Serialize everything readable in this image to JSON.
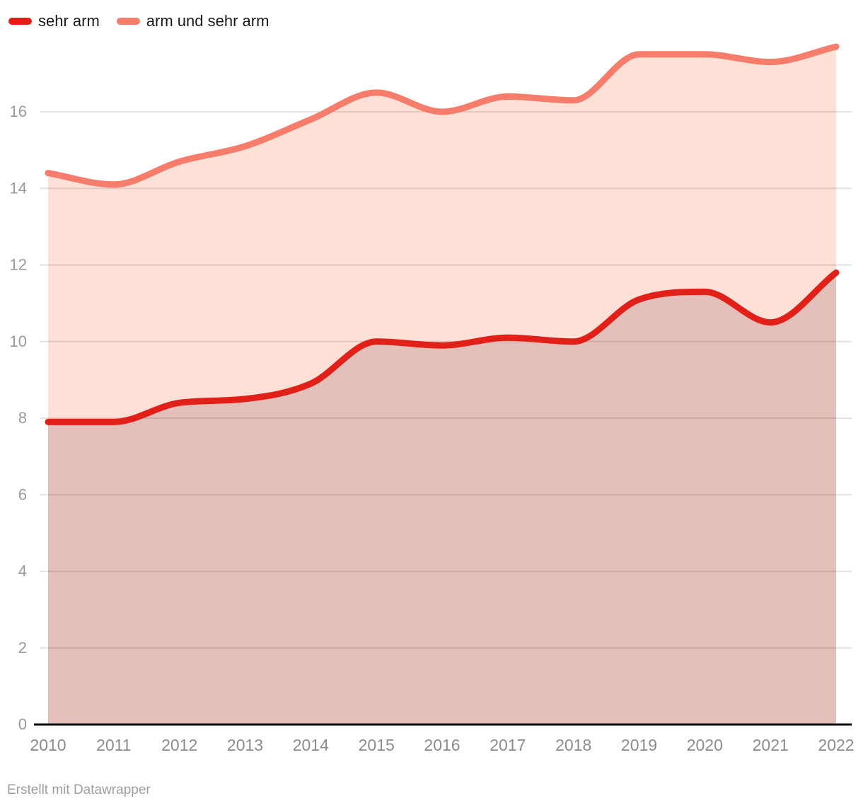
{
  "legend": {
    "items": [
      {
        "label": "sehr arm",
        "color": "#e02019"
      },
      {
        "label": "arm und sehr arm",
        "color": "#f67c6c"
      }
    ]
  },
  "footer": {
    "text": "Erstellt mit Datawrapper"
  },
  "chart_data": {
    "type": "area",
    "title": "",
    "xlabel": "",
    "ylabel": "",
    "categories": [
      2010,
      2011,
      2012,
      2013,
      2014,
      2015,
      2016,
      2017,
      2018,
      2019,
      2020,
      2021,
      2022
    ],
    "series": [
      {
        "name": "sehr arm",
        "color": "#e02019",
        "fill": "#e5c0ba",
        "values": [
          7.9,
          7.9,
          8.4,
          8.5,
          8.9,
          10.0,
          9.9,
          10.1,
          10.0,
          11.1,
          11.3,
          10.5,
          11.8
        ]
      },
      {
        "name": "arm und sehr arm",
        "color": "#f67c6c",
        "fill": "#fde0d6",
        "values": [
          14.4,
          14.1,
          14.7,
          15.1,
          15.8,
          16.5,
          16.0,
          16.4,
          16.3,
          17.5,
          17.5,
          17.3,
          17.7
        ]
      }
    ],
    "ylim": [
      0,
      17.9
    ],
    "yticks": [
      0,
      2,
      4,
      6,
      8,
      10,
      12,
      14,
      16
    ],
    "grid": "on",
    "legend_position": "top-left",
    "interpolation": "monotone-x",
    "axis_color": "#000000",
    "gridline_color": "#e0e0e0",
    "ytick_label_color": "#9b9b9b",
    "xtick_label_color": "#8c8c8c"
  }
}
